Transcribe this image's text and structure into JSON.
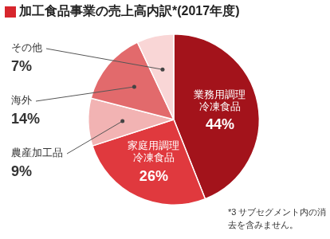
{
  "chart_data": {
    "type": "pie",
    "title": "加工食品事業の売上高内訳*(2017年度)",
    "categories": [
      "業務用調理\n冷凍食品",
      "家庭用調理\n冷凍食品",
      "農産加工品",
      "海外",
      "その他"
    ],
    "values": [
      44,
      26,
      9,
      14,
      7
    ],
    "value_labels": [
      "44%",
      "26%",
      "9%",
      "14%",
      "7%"
    ],
    "colors": [
      "#a3131b",
      "#e0393e",
      "#f2b3b3",
      "#e26a6c",
      "#f9d6d6"
    ],
    "data_labels": true,
    "note": "*3 サブセグメント内の消去を含みません。"
  }
}
